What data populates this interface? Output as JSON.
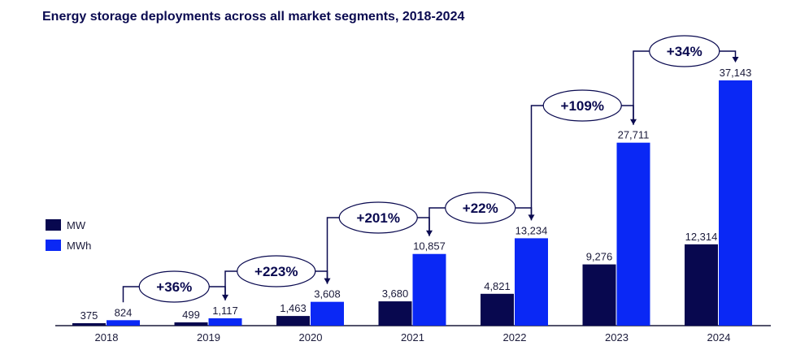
{
  "chart_data": {
    "type": "bar",
    "title": "Energy storage deployments across all market segments, 2018-2024",
    "categories": [
      "2018",
      "2019",
      "2020",
      "2021",
      "2022",
      "2023",
      "2024"
    ],
    "series": [
      {
        "name": "MW",
        "color": "#08084f",
        "values": [
          375,
          499,
          1463,
          3680,
          4821,
          9276,
          12314
        ],
        "labels": [
          "375",
          "499",
          "1,463",
          "3,680",
          "4,821",
          "9,276",
          "12,314"
        ]
      },
      {
        "name": "MWh",
        "color": "#0a28f5",
        "values": [
          824,
          1117,
          3608,
          10857,
          13234,
          27711,
          37143
        ],
        "labels": [
          "824",
          "1,117",
          "3,608",
          "10,857",
          "13,234",
          "27,711",
          "37,143"
        ]
      }
    ],
    "growth_annotations": [
      {
        "from": "2018",
        "to": "2019",
        "label": "+36%"
      },
      {
        "from": "2019",
        "to": "2020",
        "label": "+223%"
      },
      {
        "from": "2020",
        "to": "2021",
        "label": "+201%"
      },
      {
        "from": "2021",
        "to": "2022",
        "label": "+22%"
      },
      {
        "from": "2022",
        "to": "2023",
        "label": "+109%"
      },
      {
        "from": "2023",
        "to": "2024",
        "label": "+34%"
      }
    ],
    "legend_position": "left",
    "grid": false,
    "ylim": [
      0,
      37143
    ]
  }
}
